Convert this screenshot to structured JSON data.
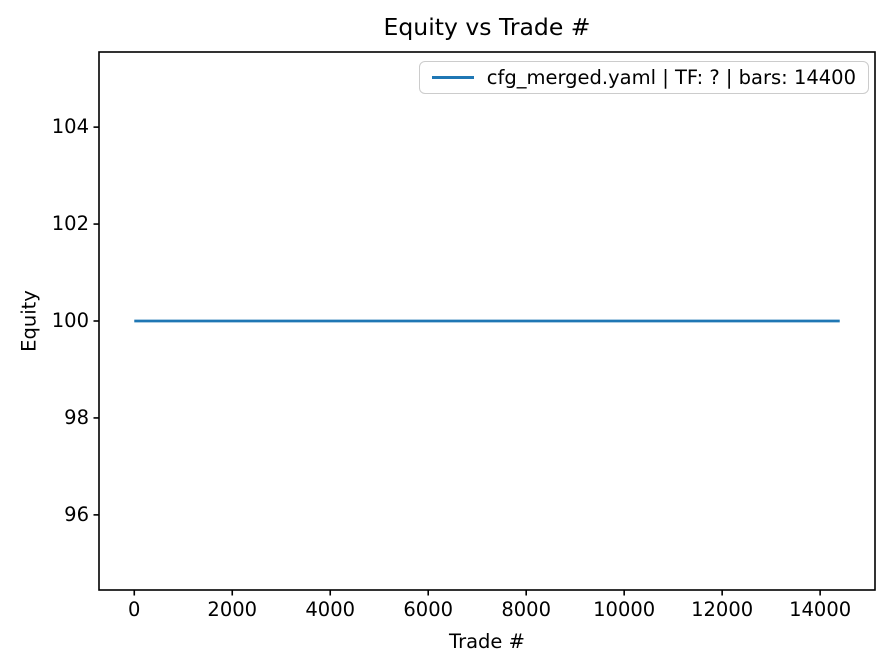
{
  "figure": {
    "background": "#ffffff",
    "text_color": "#000000"
  },
  "chart_data": {
    "type": "line",
    "title": "Equity vs Trade #",
    "xlabel": "Trade #",
    "ylabel": "Equity",
    "xlim": [
      -720,
      15120
    ],
    "ylim": [
      94.45,
      105.55
    ],
    "x_ticks": [
      0,
      2000,
      4000,
      6000,
      8000,
      10000,
      12000,
      14000
    ],
    "y_ticks": [
      96,
      98,
      100,
      102,
      104
    ],
    "grid": false,
    "axis_color": "#000000",
    "legend": {
      "position": "upper right",
      "border_color": "#cccccc",
      "background": "#ffffff"
    },
    "series": [
      {
        "name": "cfg_merged.yaml | TF: ? | bars: 14400",
        "color": "#1f77b4",
        "x": [
          0,
          14400
        ],
        "y": [
          100,
          100
        ]
      }
    ]
  }
}
